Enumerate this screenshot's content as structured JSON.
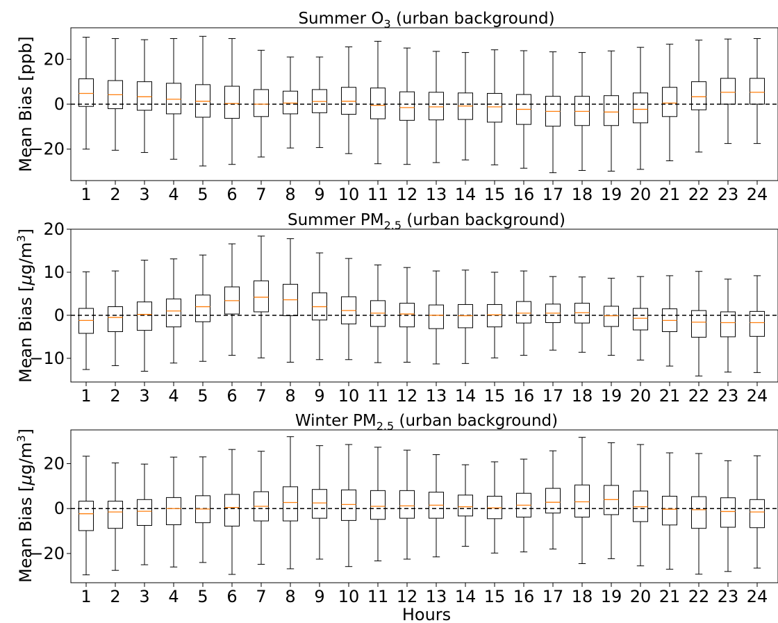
{
  "chart_data": [
    {
      "type": "box",
      "title": "Summer O₃ (urban background)",
      "title_main": "Summer O",
      "title_sub": "3",
      "title_rest": " (urban background)",
      "ylabel": "Mean Bias [ppb]",
      "ylim": [
        -34,
        34
      ],
      "yticks": [
        -20,
        0,
        20
      ],
      "ytick_labels": [
        "−20",
        "0",
        "20"
      ],
      "categories": [
        "1",
        "2",
        "3",
        "4",
        "5",
        "6",
        "7",
        "8",
        "9",
        "10",
        "11",
        "12",
        "13",
        "14",
        "15",
        "16",
        "17",
        "18",
        "19",
        "20",
        "21",
        "22",
        "23",
        "24"
      ],
      "boxes": [
        {
          "whislo": -20,
          "q1": -1,
          "med": 4.8,
          "q3": 11.3,
          "whishi": 29.8
        },
        {
          "whislo": -20.5,
          "q1": -2,
          "med": 4.2,
          "q3": 10.5,
          "whishi": 29.2
        },
        {
          "whislo": -21.5,
          "q1": -2.7,
          "med": 3.3,
          "q3": 10,
          "whishi": 28.7
        },
        {
          "whislo": -24.5,
          "q1": -4.3,
          "med": 2.2,
          "q3": 9.3,
          "whishi": 29.2
        },
        {
          "whislo": -27.5,
          "q1": -5.8,
          "med": 1.3,
          "q3": 8.7,
          "whishi": 30.2
        },
        {
          "whislo": -26.8,
          "q1": -6.3,
          "med": 0.3,
          "q3": 8,
          "whishi": 29.2
        },
        {
          "whislo": -23.5,
          "q1": -5.5,
          "med": 0,
          "q3": 6.5,
          "whishi": 24
        },
        {
          "whislo": -19.5,
          "q1": -4.3,
          "med": 0.5,
          "q3": 5.8,
          "whishi": 21
        },
        {
          "whislo": -19.3,
          "q1": -3.8,
          "med": 1.2,
          "q3": 6.5,
          "whishi": 21
        },
        {
          "whislo": -22,
          "q1": -4.5,
          "med": 1.3,
          "q3": 7.5,
          "whishi": 25.5
        },
        {
          "whislo": -26.5,
          "q1": -6.5,
          "med": -0.5,
          "q3": 7.2,
          "whishi": 28
        },
        {
          "whislo": -26.8,
          "q1": -7.2,
          "med": -1.5,
          "q3": 5.5,
          "whishi": 25
        },
        {
          "whislo": -26,
          "q1": -7,
          "med": -1.2,
          "q3": 5.3,
          "whishi": 23.5
        },
        {
          "whislo": -24.8,
          "q1": -6.8,
          "med": -0.8,
          "q3": 5,
          "whishi": 23
        },
        {
          "whislo": -27,
          "q1": -8,
          "med": -1.2,
          "q3": 4.8,
          "whishi": 24.2
        },
        {
          "whislo": -28.5,
          "q1": -9,
          "med": -2.3,
          "q3": 4.3,
          "whishi": 23.8
        },
        {
          "whislo": -30.5,
          "q1": -9.8,
          "med": -3.2,
          "q3": 3.5,
          "whishi": 23.3
        },
        {
          "whislo": -29.5,
          "q1": -9.5,
          "med": -3.2,
          "q3": 3.5,
          "whishi": 23
        },
        {
          "whislo": -29.8,
          "q1": -9.5,
          "med": -3.5,
          "q3": 3.8,
          "whishi": 23.7
        },
        {
          "whislo": -29,
          "q1": -8.3,
          "med": -2.3,
          "q3": 5,
          "whishi": 25.3
        },
        {
          "whislo": -25.2,
          "q1": -5.5,
          "med": 0.5,
          "q3": 7.5,
          "whishi": 26.7
        },
        {
          "whislo": -21.3,
          "q1": -2.5,
          "med": 3.3,
          "q3": 10,
          "whishi": 28.5
        },
        {
          "whislo": -17.5,
          "q1": 0,
          "med": 5.3,
          "q3": 11.5,
          "whishi": 29
        },
        {
          "whislo": -17.5,
          "q1": 0,
          "med": 5.3,
          "q3": 11.5,
          "whishi": 29.2
        }
      ]
    },
    {
      "type": "box",
      "title": "Summer PM₂.₅ (urban background)",
      "title_main": "Summer PM",
      "title_sub": "2.5",
      "title_rest": " (urban background)",
      "ylabel": "Mean Bias [μg/m³]",
      "ylabel_main": "Mean Bias [",
      "ylabel_mu": "μ",
      "ylabel_unit": "g/m",
      "ylabel_sup": "3",
      "ylabel_close": "]",
      "ylim": [
        -15.5,
        20
      ],
      "yticks": [
        -10,
        0,
        10,
        20
      ],
      "ytick_labels": [
        "−10",
        "0",
        "10",
        "20"
      ],
      "categories": [
        "1",
        "2",
        "3",
        "4",
        "5",
        "6",
        "7",
        "8",
        "9",
        "10",
        "11",
        "12",
        "13",
        "14",
        "15",
        "16",
        "17",
        "18",
        "19",
        "20",
        "21",
        "22",
        "23",
        "24"
      ],
      "boxes": [
        {
          "whislo": -12.6,
          "q1": -4.2,
          "med": -1.2,
          "q3": 1.6,
          "whishi": 10.1
        },
        {
          "whislo": -11.7,
          "q1": -3.8,
          "med": -0.5,
          "q3": 2,
          "whishi": 10.3
        },
        {
          "whislo": -13,
          "q1": -3.5,
          "med": 0.2,
          "q3": 3.1,
          "whishi": 12.8
        },
        {
          "whislo": -11.1,
          "q1": -2.7,
          "med": 1,
          "q3": 3.8,
          "whishi": 13.1
        },
        {
          "whislo": -10.7,
          "q1": -1.5,
          "med": 2,
          "q3": 4.7,
          "whishi": 14
        },
        {
          "whislo": -9.3,
          "q1": 0.3,
          "med": 3.4,
          "q3": 6.6,
          "whishi": 16.6
        },
        {
          "whislo": -9.9,
          "q1": 0.8,
          "med": 4.2,
          "q3": 8,
          "whishi": 18.4
        },
        {
          "whislo": -10.9,
          "q1": -0.1,
          "med": 3.6,
          "q3": 7.2,
          "whishi": 17.8
        },
        {
          "whislo": -10.3,
          "q1": -1.1,
          "med": 2,
          "q3": 5.2,
          "whishi": 14.5
        },
        {
          "whislo": -10.3,
          "q1": -2,
          "med": 1.1,
          "q3": 4.3,
          "whishi": 13.2
        },
        {
          "whislo": -11,
          "q1": -2.6,
          "med": 0.5,
          "q3": 3.4,
          "whishi": 11.7
        },
        {
          "whislo": -10.9,
          "q1": -2.7,
          "med": 0.3,
          "q3": 2.8,
          "whishi": 11.1
        },
        {
          "whislo": -11.3,
          "q1": -3.1,
          "med": 0,
          "q3": 2.4,
          "whishi": 10.3
        },
        {
          "whislo": -11.2,
          "q1": -2.9,
          "med": -0.1,
          "q3": 2.5,
          "whishi": 10.5
        },
        {
          "whislo": -9.9,
          "q1": -2.7,
          "med": 0.1,
          "q3": 2.5,
          "whishi": 10
        },
        {
          "whislo": -9.3,
          "q1": -1.8,
          "med": 0.5,
          "q3": 3.2,
          "whishi": 10.3
        },
        {
          "whislo": -8.1,
          "q1": -1.7,
          "med": 0.5,
          "q3": 2.6,
          "whishi": 9
        },
        {
          "whislo": -8.6,
          "q1": -1.8,
          "med": 0.6,
          "q3": 2.8,
          "whishi": 8.9
        },
        {
          "whislo": -9.3,
          "q1": -2.6,
          "med": -0.1,
          "q3": 2.1,
          "whishi": 8.6
        },
        {
          "whislo": -10.4,
          "q1": -3.4,
          "med": -0.7,
          "q3": 1.6,
          "whishi": 9
        },
        {
          "whislo": -11.8,
          "q1": -3.8,
          "med": -1.2,
          "q3": 1.5,
          "whishi": 9.2
        },
        {
          "whislo": -14.1,
          "q1": -5.1,
          "med": -1.6,
          "q3": 1.1,
          "whishi": 10.2
        },
        {
          "whislo": -13.2,
          "q1": -5,
          "med": -1.7,
          "q3": 0.8,
          "whishi": 8.4
        },
        {
          "whislo": -13.3,
          "q1": -4.9,
          "med": -1.7,
          "q3": 0.9,
          "whishi": 9.2
        }
      ]
    },
    {
      "type": "box",
      "title": "Winter PM₂.₅ (urban background)",
      "title_main": "Winter PM",
      "title_sub": "2.5",
      "title_rest": " (urban background)",
      "ylabel": "Mean Bias [μg/m³]",
      "ylabel_main": "Mean Bias [",
      "ylabel_mu": "μ",
      "ylabel_unit": "g/m",
      "ylabel_sup": "3",
      "ylabel_close": "]",
      "xlabel": "Hours",
      "ylim": [
        -33,
        35
      ],
      "yticks": [
        -20,
        0,
        20
      ],
      "ytick_labels": [
        "−20",
        "0",
        "20"
      ],
      "categories": [
        "1",
        "2",
        "3",
        "4",
        "5",
        "6",
        "7",
        "8",
        "9",
        "10",
        "11",
        "12",
        "13",
        "14",
        "15",
        "16",
        "17",
        "18",
        "19",
        "20",
        "21",
        "22",
        "23",
        "24"
      ],
      "boxes": [
        {
          "whislo": -29.5,
          "q1": -9.8,
          "med": -2.3,
          "q3": 3.3,
          "whishi": 23.3
        },
        {
          "whislo": -27.5,
          "q1": -8.8,
          "med": -1.5,
          "q3": 3.3,
          "whishi": 20.3
        },
        {
          "whislo": -25,
          "q1": -7.5,
          "med": -1.2,
          "q3": 4,
          "whishi": 19.8
        },
        {
          "whislo": -26,
          "q1": -7.2,
          "med": 0,
          "q3": 4.9,
          "whishi": 22.9
        },
        {
          "whislo": -24,
          "q1": -6.3,
          "med": -0.2,
          "q3": 5.7,
          "whishi": 23
        },
        {
          "whislo": -29.3,
          "q1": -7.8,
          "med": 0.5,
          "q3": 6.3,
          "whishi": 26.3
        },
        {
          "whislo": -24.8,
          "q1": -5.5,
          "med": 1,
          "q3": 7.5,
          "whishi": 25.5
        },
        {
          "whislo": -26.8,
          "q1": -5.5,
          "med": 2.7,
          "q3": 9.7,
          "whishi": 32
        },
        {
          "whislo": -22.5,
          "q1": -4.3,
          "med": 2.5,
          "q3": 8.5,
          "whishi": 28
        },
        {
          "whislo": -25.8,
          "q1": -5.3,
          "med": 1.8,
          "q3": 8.3,
          "whishi": 28.5
        },
        {
          "whislo": -23.3,
          "q1": -4.8,
          "med": 1,
          "q3": 8,
          "whishi": 27.3
        },
        {
          "whislo": -22.5,
          "q1": -4.3,
          "med": 1.2,
          "q3": 8,
          "whishi": 26
        },
        {
          "whislo": -21.5,
          "q1": -4.3,
          "med": 1.5,
          "q3": 7.3,
          "whishi": 24
        },
        {
          "whislo": -16.8,
          "q1": -3.3,
          "med": 0.8,
          "q3": 6,
          "whishi": 19.5
        },
        {
          "whislo": -19.8,
          "q1": -4.5,
          "med": 0.3,
          "q3": 5.5,
          "whishi": 20.8
        },
        {
          "whislo": -19.3,
          "q1": -3.8,
          "med": 1.5,
          "q3": 6.8,
          "whishi": 22
        },
        {
          "whislo": -18,
          "q1": -2,
          "med": 2.8,
          "q3": 9,
          "whishi": 25.7
        },
        {
          "whislo": -24.5,
          "q1": -3.8,
          "med": 3,
          "q3": 10.5,
          "whishi": 31.7
        },
        {
          "whislo": -22.3,
          "q1": -2.7,
          "med": 4,
          "q3": 10.3,
          "whishi": 29.3
        },
        {
          "whislo": -25.5,
          "q1": -5.8,
          "med": 0.8,
          "q3": 7.8,
          "whishi": 28.5
        },
        {
          "whislo": -27,
          "q1": -7.3,
          "med": -0.3,
          "q3": 5.5,
          "whishi": 24.8
        },
        {
          "whislo": -29.2,
          "q1": -8.8,
          "med": -0.5,
          "q3": 5.3,
          "whishi": 24.5
        },
        {
          "whislo": -28,
          "q1": -8.3,
          "med": -1.3,
          "q3": 4.8,
          "whishi": 21.3
        },
        {
          "whislo": -26.5,
          "q1": -8.5,
          "med": -1.5,
          "q3": 4,
          "whishi": 23.5
        }
      ]
    }
  ]
}
